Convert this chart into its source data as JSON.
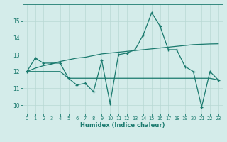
{
  "x_values": [
    0,
    1,
    2,
    3,
    4,
    5,
    6,
    7,
    8,
    9,
    10,
    11,
    12,
    13,
    14,
    15,
    16,
    17,
    18,
    19,
    20,
    21,
    22,
    23
  ],
  "line_main_y": [
    12.0,
    12.8,
    12.5,
    12.5,
    12.5,
    11.6,
    11.2,
    11.3,
    10.8,
    12.65,
    10.1,
    13.0,
    13.1,
    13.3,
    14.2,
    15.5,
    14.7,
    13.3,
    13.3,
    12.3,
    12.0,
    9.9,
    12.0,
    11.5
  ],
  "trend_upper_y": [
    12.0,
    12.2,
    12.35,
    12.45,
    12.6,
    12.7,
    12.8,
    12.85,
    12.95,
    13.05,
    13.1,
    13.15,
    13.2,
    13.25,
    13.3,
    13.35,
    13.4,
    13.45,
    13.5,
    13.55,
    13.6,
    13.62,
    13.64,
    13.65
  ],
  "trend_lower_y": [
    12.0,
    12.0,
    12.0,
    12.0,
    12.0,
    11.6,
    11.6,
    11.6,
    11.6,
    11.6,
    11.6,
    11.6,
    11.6,
    11.6,
    11.6,
    11.6,
    11.6,
    11.6,
    11.6,
    11.6,
    11.6,
    11.6,
    11.6,
    11.5
  ],
  "line_color": "#1a7a6e",
  "bg_color": "#d4ecea",
  "grid_color": "#b8d8d4",
  "xlabel": "Humidex (Indice chaleur)",
  "ylim": [
    9.5,
    16.0
  ],
  "xlim": [
    -0.5,
    23.5
  ],
  "yticks": [
    10,
    11,
    12,
    13,
    14,
    15
  ],
  "xticks": [
    0,
    1,
    2,
    3,
    4,
    5,
    6,
    7,
    8,
    9,
    10,
    11,
    12,
    13,
    14,
    15,
    16,
    17,
    18,
    19,
    20,
    21,
    22,
    23
  ]
}
